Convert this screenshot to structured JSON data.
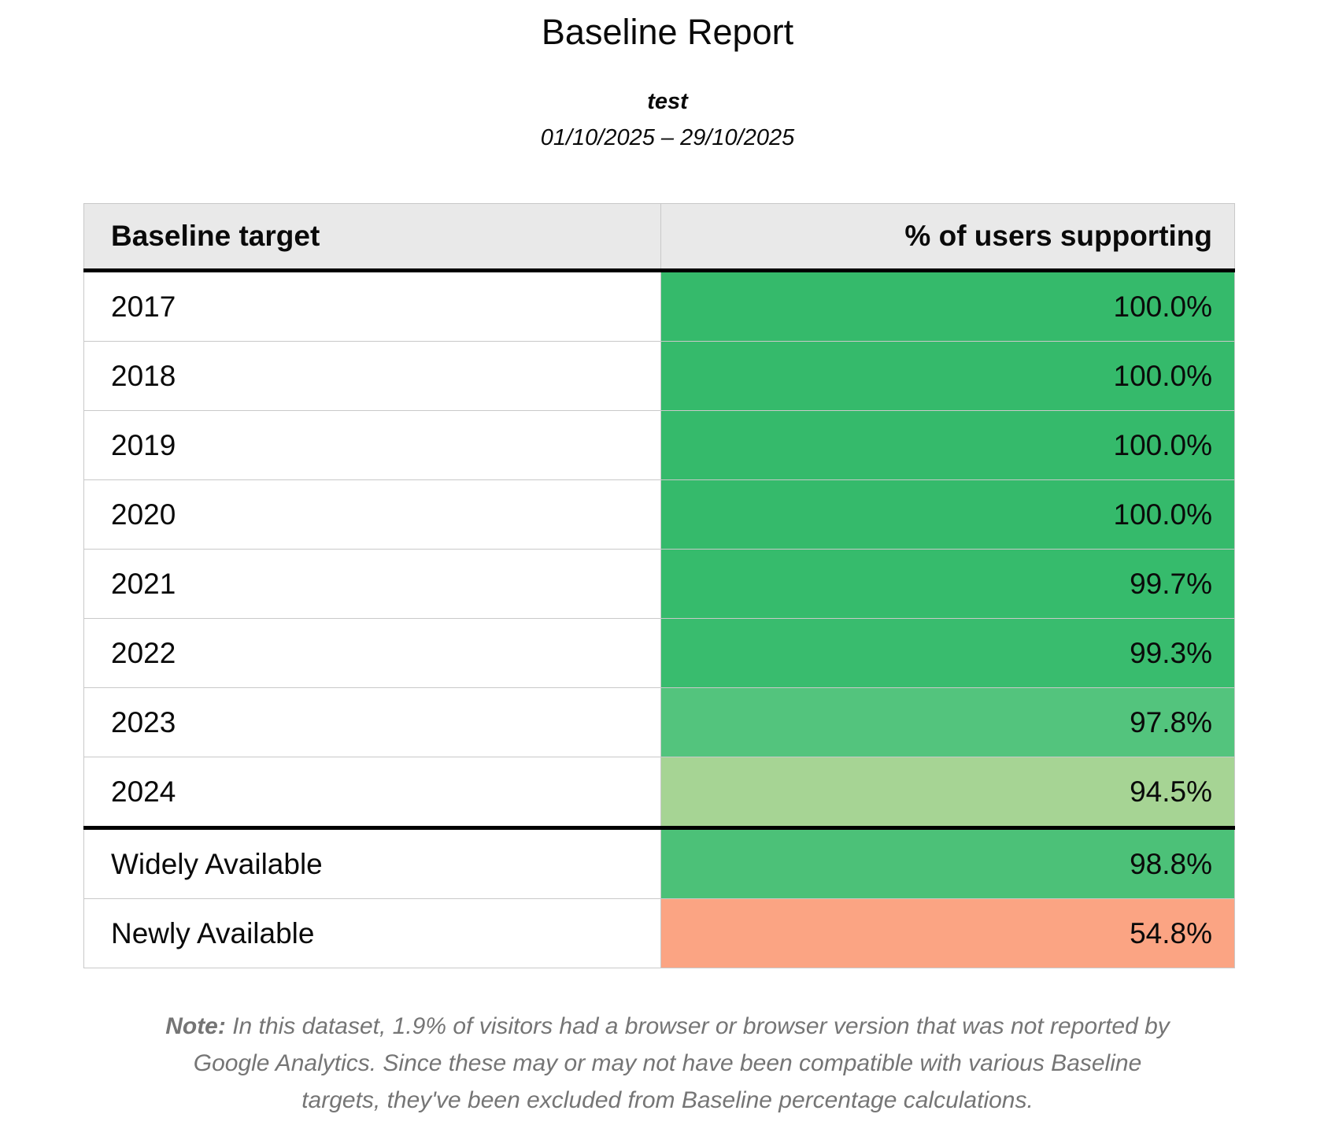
{
  "report": {
    "title": "Baseline Report",
    "subtitle": "test",
    "date_range": "01/10/2025 – 29/10/2025"
  },
  "table": {
    "columns": {
      "target": "Baseline target",
      "percent": "% of users supporting"
    },
    "rows": [
      {
        "label": "2017",
        "value": "100.0%",
        "color": "#35ba6b"
      },
      {
        "label": "2018",
        "value": "100.0%",
        "color": "#35ba6b"
      },
      {
        "label": "2019",
        "value": "100.0%",
        "color": "#35ba6b"
      },
      {
        "label": "2020",
        "value": "100.0%",
        "color": "#35ba6b"
      },
      {
        "label": "2021",
        "value": "99.7%",
        "color": "#36bb6c"
      },
      {
        "label": "2022",
        "value": "99.3%",
        "color": "#39bc6e"
      },
      {
        "label": "2023",
        "value": "97.8%",
        "color": "#53c47d"
      },
      {
        "label": "2024",
        "value": "94.5%",
        "color": "#a6d494"
      },
      {
        "label": "Widely Available",
        "value": "98.8%",
        "color": "#4cc178"
      },
      {
        "label": "Newly Available",
        "value": "54.8%",
        "color": "#fba483"
      }
    ]
  },
  "note": {
    "label": "Note:",
    "text": "In this dataset, 1.9% of visitors had a browser or browser version that was not reported by Google Analytics. Since these may or may not have been compatible with various Baseline targets, they've been excluded from Baseline percentage calculations."
  },
  "chart_data": {
    "type": "table",
    "title": "Baseline Report",
    "subtitle": "test",
    "date_range": "01/10/2025 – 29/10/2025",
    "columns": [
      "Baseline target",
      "% of users supporting"
    ],
    "categories": [
      "2017",
      "2018",
      "2019",
      "2020",
      "2021",
      "2022",
      "2023",
      "2024",
      "Widely Available",
      "Newly Available"
    ],
    "values": [
      100.0,
      100.0,
      100.0,
      100.0,
      99.7,
      99.3,
      97.8,
      94.5,
      98.8,
      54.8
    ],
    "value_unit": "%",
    "color_encoding": "cell background interpolates green (high support) to salmon (low support)",
    "cell_colors": [
      "#35ba6b",
      "#35ba6b",
      "#35ba6b",
      "#35ba6b",
      "#36bb6c",
      "#39bc6e",
      "#53c47d",
      "#a6d494",
      "#4cc178",
      "#fba483"
    ],
    "note": "Note: In this dataset, 1.9% of visitors had a browser or browser version that was not reported by Google Analytics. Since these may or may not have been compatible with various Baseline targets, they've been excluded from Baseline percentage calculations."
  }
}
